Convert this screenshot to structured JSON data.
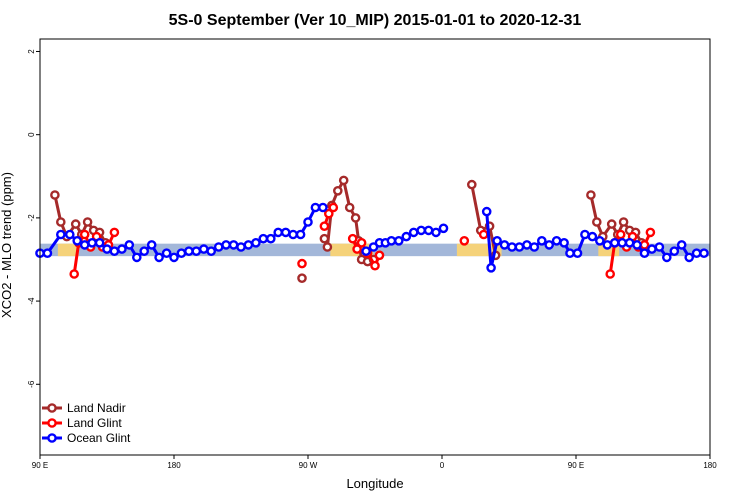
{
  "chart_data": {
    "type": "line",
    "title": "5S-0 September (Ver 10_MIP)   2015-01-01 to 2020-12-31",
    "xlabel": "Longitude",
    "ylabel": "XCO2 - MLO trend (ppm)",
    "xlim": [
      90,
      540
    ],
    "ylim": [
      -7.7,
      2.3
    ],
    "x_ticks": [
      {
        "value": 90,
        "label": "90 E"
      },
      {
        "value": 180,
        "label": "180"
      },
      {
        "value": 270,
        "label": "90 W"
      },
      {
        "value": 360,
        "label": "0"
      },
      {
        "value": 450,
        "label": "90 E"
      },
      {
        "value": 540,
        "label": "180"
      }
    ],
    "y_ticks": [
      {
        "value": 2,
        "label": "2"
      },
      {
        "value": 0,
        "label": "0"
      },
      {
        "value": -2,
        "label": "-2"
      },
      {
        "value": -4,
        "label": "-4"
      },
      {
        "value": -6,
        "label": "-6"
      }
    ],
    "background_band": {
      "y_range": [
        -2.92,
        -2.62
      ],
      "color": "#a3b7d9",
      "land_color": "#f5d27a",
      "land_x_ranges": [
        [
          102,
          116
        ],
        [
          285,
          314
        ],
        [
          370,
          400
        ],
        [
          465,
          479
        ]
      ]
    },
    "series": [
      {
        "name": "Land Nadir",
        "color": "#a52a2a",
        "segments": [
          [
            [
              100,
              -1.45
            ],
            [
              104,
              -2.1
            ],
            [
              108,
              -2.45
            ],
            [
              114,
              -2.15
            ],
            [
              118,
              -2.4
            ],
            [
              122,
              -2.1
            ],
            [
              126,
              -2.3
            ],
            [
              130,
              -2.35
            ],
            [
              134,
              -2.6
            ]
          ],
          [
            [
              281,
              -2.5
            ],
            [
              283,
              -2.7
            ],
            [
              286,
              -1.7
            ],
            [
              290,
              -1.35
            ],
            [
              294,
              -1.1
            ],
            [
              298,
              -1.75
            ],
            [
              302,
              -2.0
            ],
            [
              304,
              -2.55
            ],
            [
              306,
              -3.0
            ],
            [
              310,
              -3.05
            ],
            [
              314,
              -3.0
            ]
          ],
          [
            [
              380,
              -1.2
            ],
            [
              386,
              -2.3
            ],
            [
              392,
              -2.2
            ],
            [
              396,
              -2.9
            ]
          ],
          [
            [
              460,
              -1.45
            ],
            [
              464,
              -2.1
            ],
            [
              468,
              -2.45
            ],
            [
              474,
              -2.15
            ],
            [
              478,
              -2.4
            ],
            [
              482,
              -2.1
            ],
            [
              486,
              -2.3
            ],
            [
              490,
              -2.35
            ],
            [
              494,
              -2.6
            ]
          ],
          [
            [
              266,
              -3.45
            ]
          ]
        ]
      },
      {
        "name": "Land Glint",
        "color": "#ff0000",
        "segments": [
          [
            [
              113,
              -3.35
            ],
            [
              116,
              -2.6
            ],
            [
              120,
              -2.4
            ],
            [
              124,
              -2.7
            ],
            [
              128,
              -2.45
            ],
            [
              132,
              -2.7
            ],
            [
              136,
              -2.65
            ],
            [
              140,
              -2.35
            ]
          ],
          [
            [
              281,
              -2.2
            ],
            [
              284,
              -1.9
            ],
            [
              287,
              -1.75
            ]
          ],
          [
            [
              300,
              -2.5
            ],
            [
              303,
              -2.75
            ],
            [
              306,
              -2.6
            ],
            [
              310,
              -2.85
            ],
            [
              315,
              -3.15
            ],
            [
              318,
              -2.9
            ]
          ],
          [
            [
              473,
              -3.35
            ],
            [
              476,
              -2.6
            ],
            [
              480,
              -2.4
            ],
            [
              484,
              -2.7
            ],
            [
              488,
              -2.45
            ],
            [
              492,
              -2.7
            ],
            [
              496,
              -2.65
            ],
            [
              500,
              -2.35
            ]
          ],
          [
            [
              266,
              -3.1
            ]
          ],
          [
            [
              375,
              -2.55
            ]
          ],
          [
            [
              388,
              -2.4
            ]
          ]
        ]
      },
      {
        "name": "Ocean Glint",
        "color": "#0000ff",
        "segments": [
          [
            [
              90,
              -2.85
            ],
            [
              95,
              -2.85
            ],
            [
              104,
              -2.4
            ],
            [
              110,
              -2.4
            ],
            [
              115,
              -2.55
            ],
            [
              120,
              -2.65
            ],
            [
              125,
              -2.6
            ],
            [
              130,
              -2.6
            ],
            [
              135,
              -2.75
            ],
            [
              140,
              -2.8
            ],
            [
              145,
              -2.75
            ],
            [
              150,
              -2.65
            ],
            [
              155,
              -2.95
            ],
            [
              160,
              -2.8
            ],
            [
              165,
              -2.65
            ],
            [
              170,
              -2.95
            ],
            [
              175,
              -2.85
            ],
            [
              180,
              -2.95
            ],
            [
              185,
              -2.85
            ],
            [
              190,
              -2.8
            ],
            [
              195,
              -2.8
            ],
            [
              200,
              -2.75
            ],
            [
              205,
              -2.8
            ],
            [
              210,
              -2.7
            ],
            [
              215,
              -2.65
            ],
            [
              220,
              -2.65
            ],
            [
              225,
              -2.7
            ],
            [
              230,
              -2.65
            ],
            [
              235,
              -2.6
            ],
            [
              240,
              -2.5
            ],
            [
              245,
              -2.5
            ],
            [
              250,
              -2.35
            ],
            [
              255,
              -2.35
            ],
            [
              260,
              -2.4
            ],
            [
              265,
              -2.4
            ],
            [
              270,
              -2.1
            ],
            [
              275,
              -1.75
            ],
            [
              280,
              -1.75
            ]
          ],
          [
            [
              309,
              -2.8
            ],
            [
              314,
              -2.7
            ],
            [
              318,
              -2.6
            ],
            [
              322,
              -2.6
            ],
            [
              326,
              -2.55
            ],
            [
              331,
              -2.55
            ],
            [
              336,
              -2.45
            ],
            [
              341,
              -2.35
            ],
            [
              346,
              -2.3
            ],
            [
              351,
              -2.3
            ],
            [
              356,
              -2.35
            ],
            [
              361,
              -2.25
            ]
          ],
          [
            [
              390,
              -1.85
            ],
            [
              393,
              -3.2
            ],
            [
              397,
              -2.55
            ],
            [
              402,
              -2.65
            ],
            [
              407,
              -2.7
            ],
            [
              412,
              -2.7
            ],
            [
              417,
              -2.65
            ],
            [
              422,
              -2.7
            ],
            [
              427,
              -2.55
            ],
            [
              432,
              -2.65
            ],
            [
              437,
              -2.55
            ],
            [
              442,
              -2.6
            ],
            [
              446,
              -2.85
            ],
            [
              451,
              -2.85
            ],
            [
              456,
              -2.4
            ],
            [
              461,
              -2.45
            ],
            [
              466,
              -2.55
            ],
            [
              471,
              -2.65
            ],
            [
              476,
              -2.6
            ],
            [
              481,
              -2.6
            ],
            [
              486,
              -2.6
            ],
            [
              491,
              -2.65
            ],
            [
              496,
              -2.85
            ],
            [
              501,
              -2.75
            ],
            [
              506,
              -2.7
            ],
            [
              511,
              -2.95
            ],
            [
              516,
              -2.8
            ],
            [
              521,
              -2.65
            ],
            [
              526,
              -2.95
            ],
            [
              531,
              -2.85
            ],
            [
              536,
              -2.85
            ]
          ]
        ]
      }
    ],
    "legend": {
      "position": "bottom-left"
    }
  }
}
